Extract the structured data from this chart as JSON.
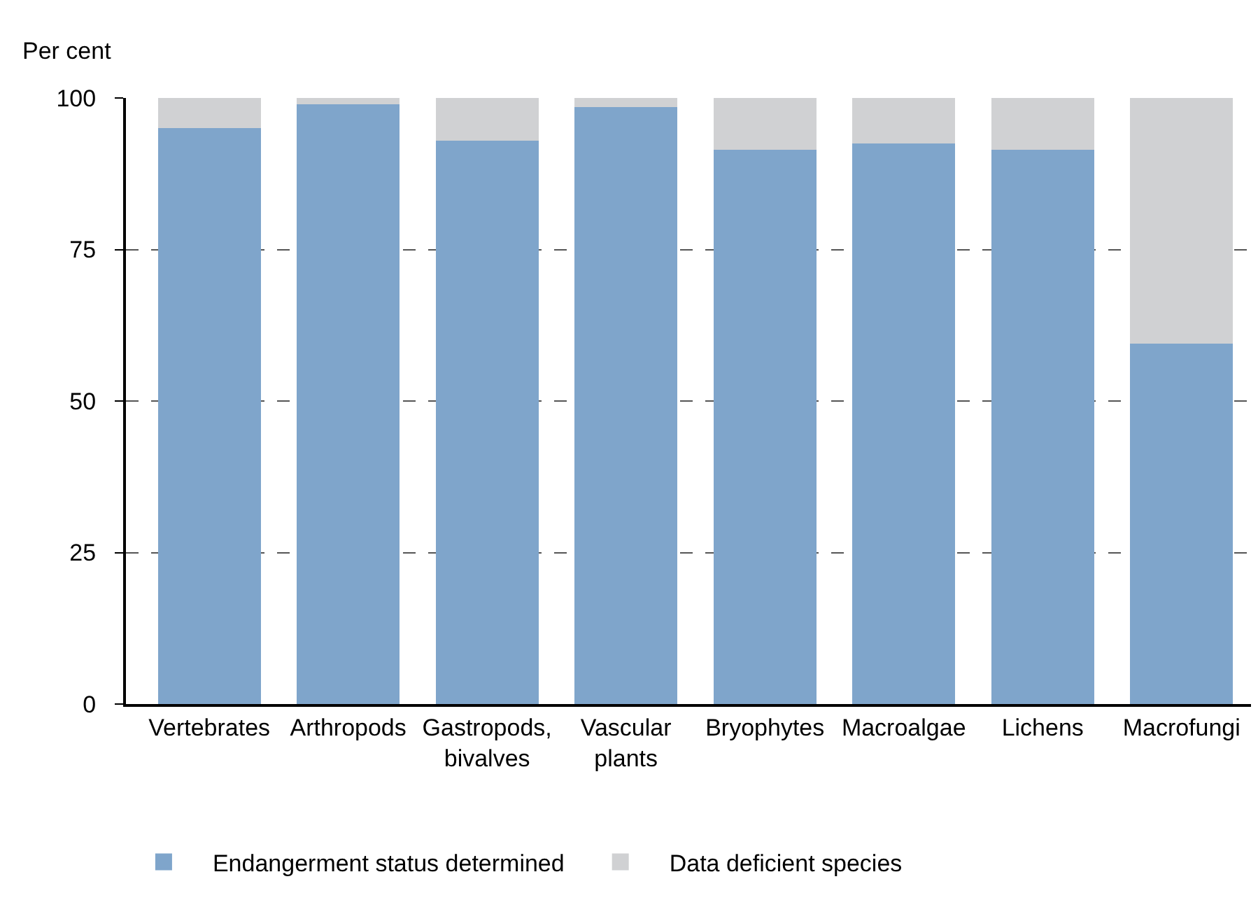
{
  "chart_data": {
    "type": "bar",
    "stacked": true,
    "ylabel": "Per cent",
    "categories": [
      "Vertebrates",
      "Arthropods",
      "Gastropods,\nbivalves",
      "Vascular\nplants",
      "Bryophytes",
      "Macroalgae",
      "Lichens",
      "Macrofungi"
    ],
    "series": [
      {
        "name": "Endangerment status determined",
        "color": "#7fa5cb",
        "values": [
          95,
          99,
          93,
          98.5,
          91.5,
          92.5,
          91.5,
          59.5
        ]
      },
      {
        "name": "Data deficient species",
        "color": "#d0d1d3",
        "values": [
          5,
          1,
          7,
          1.5,
          8.5,
          7.5,
          8.5,
          40.5
        ]
      }
    ],
    "ylim": [
      0,
      100
    ],
    "yticks": [
      0,
      25,
      50,
      75,
      100
    ],
    "grid": "y",
    "legend": "bottom left"
  }
}
